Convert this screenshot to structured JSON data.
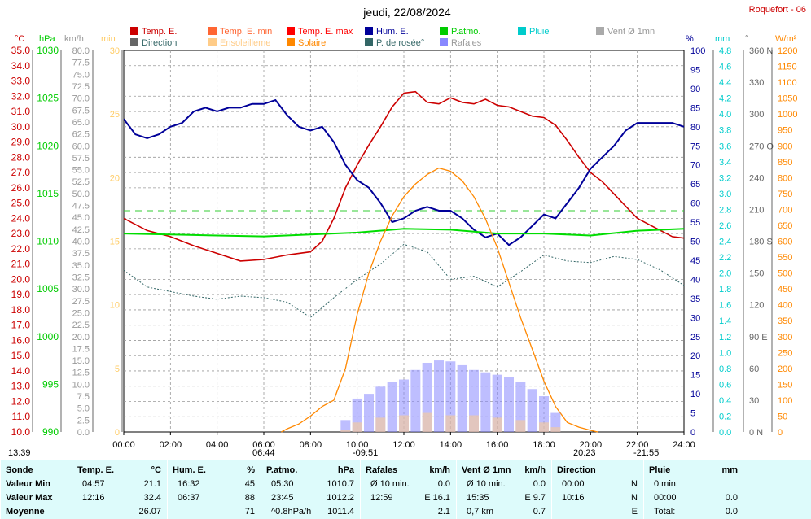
{
  "header": {
    "title": "jeudi, 22/08/2024",
    "station": "Roquefort - 06"
  },
  "legend": [
    {
      "label": "Temp. E.",
      "color": "#cc0000"
    },
    {
      "label": "Temp. E. min",
      "color": "#ff6633"
    },
    {
      "label": "Temp. E. max",
      "color": "#ff0000"
    },
    {
      "label": "Hum. E.",
      "color": "#000099"
    },
    {
      "label": "P.atmo.",
      "color": "#00cc00"
    },
    {
      "label": "Pluie",
      "color": "#00cccc"
    },
    {
      "label": "Vent Ø 1mn",
      "color": "#aaaaaa"
    },
    {
      "label": "Direction",
      "color": "#666666"
    },
    {
      "label": "Ensoleilleme",
      "color": "#ffcc88"
    },
    {
      "label": "Solaire",
      "color": "#ff8800"
    },
    {
      "label": "P. de rosée°",
      "color": "#336666"
    },
    {
      "label": "Rafales",
      "color": "#8888ff"
    }
  ],
  "axes": {
    "units": {
      "temp": "°C",
      "press": "hPa",
      "wind": "km/h",
      "solar_min": "min",
      "hum": "%",
      "rain": "mm",
      "dir": "°",
      "solar": "W/m²"
    },
    "temp_ticks": [
      "35.0",
      "34.0",
      "33.0",
      "32.0",
      "31.0",
      "30.0",
      "29.0",
      "28.0",
      "27.0",
      "26.0",
      "25.0",
      "24.0",
      "23.0",
      "22.0",
      "21.0",
      "20.0",
      "19.0",
      "18.0",
      "17.0",
      "16.0",
      "15.0",
      "14.0",
      "13.0",
      "12.0",
      "11.0",
      "10.0"
    ],
    "press_ticks": [
      "1030",
      "1025",
      "1020",
      "1015",
      "1010",
      "1005",
      "1000",
      "995",
      "990"
    ],
    "wind_ticks": [
      "80.0",
      "77.5",
      "75.0",
      "72.5",
      "70.0",
      "67.5",
      "65.0",
      "62.5",
      "60.0",
      "57.5",
      "55.0",
      "52.5",
      "50.0",
      "47.5",
      "45.0",
      "42.5",
      "40.0",
      "37.5",
      "35.0",
      "32.5",
      "30.0",
      "27.5",
      "25.0",
      "22.5",
      "20.0",
      "17.5",
      "15.0",
      "12.5",
      "10.0",
      "7.5",
      "5.0",
      "2.5",
      "0.0"
    ],
    "min_ticks": [
      "30",
      "25",
      "20",
      "15",
      "10",
      "5",
      "0"
    ],
    "hum_ticks": [
      "100",
      "95",
      "90",
      "85",
      "80",
      "75",
      "70",
      "65",
      "60",
      "55",
      "50",
      "45",
      "40",
      "35",
      "30",
      "25",
      "20",
      "15",
      "10",
      "5",
      "0"
    ],
    "rain_ticks": [
      "4.8",
      "4.6",
      "4.4",
      "4.2",
      "4.0",
      "3.8",
      "3.6",
      "3.4",
      "3.2",
      "3.0",
      "2.8",
      "2.6",
      "2.4",
      "2.2",
      "2.0",
      "1.8",
      "1.6",
      "1.4",
      "1.2",
      "1.0",
      "0.8",
      "0.6",
      "0.4",
      "0.2",
      "0.0"
    ],
    "dir_ticks": [
      "360 N",
      "330",
      "300",
      "270 O",
      "240",
      "210",
      "180 S",
      "150",
      "120",
      "90 E",
      "60",
      "30",
      "0 N"
    ],
    "solar_ticks": [
      "1200",
      "1150",
      "1100",
      "1050",
      "1000",
      "950",
      "900",
      "850",
      "800",
      "750",
      "700",
      "650",
      "600",
      "550",
      "500",
      "450",
      "400",
      "350",
      "300",
      "250",
      "200",
      "150",
      "100",
      "50",
      "0"
    ],
    "time_ticks": [
      "00:00",
      "02:00",
      "04:00",
      "06:00",
      "08:00",
      "10:00",
      "12:00",
      "14:00",
      "16:00",
      "18:00",
      "20:00",
      "22:00",
      "24:00"
    ]
  },
  "markers": {
    "m1": "13:39",
    "m2": "06:44",
    "m3": "-09:51",
    "m4": "20:23",
    "m5": "-21:55"
  },
  "chart_data": {
    "type": "line",
    "x_unit": "hours",
    "series": [
      {
        "name": "Temp. E.",
        "unit": "°C",
        "x": [
          0,
          1,
          2,
          3,
          4,
          5,
          6,
          7,
          8,
          8.5,
          9,
          9.5,
          10,
          10.5,
          11,
          11.5,
          12,
          12.5,
          13,
          13.5,
          14,
          14.5,
          15,
          15.5,
          16,
          16.5,
          17,
          17.5,
          18,
          18.5,
          19,
          19.5,
          20,
          20.5,
          21,
          21.5,
          22,
          22.5,
          23,
          23.5,
          24
        ],
        "y": [
          24.0,
          23.2,
          22.8,
          22.2,
          21.7,
          21.2,
          21.3,
          21.6,
          21.8,
          22.5,
          24.0,
          26.0,
          27.5,
          28.8,
          30.0,
          31.3,
          32.2,
          32.3,
          31.6,
          31.5,
          31.9,
          31.6,
          31.5,
          31.8,
          31.4,
          31.3,
          31.0,
          30.7,
          30.6,
          30.1,
          29.1,
          28.0,
          27.0,
          26.4,
          25.6,
          24.8,
          24.0,
          23.6,
          23.2,
          22.8,
          22.7
        ]
      },
      {
        "name": "Hum. E.",
        "unit": "%",
        "x": [
          0,
          0.5,
          1,
          1.5,
          2,
          2.5,
          3,
          3.5,
          4,
          4.5,
          5,
          5.5,
          6,
          6.5,
          7,
          7.5,
          8,
          8.5,
          9,
          9.5,
          10,
          10.5,
          11,
          11.5,
          12,
          12.5,
          13,
          13.5,
          14,
          14.5,
          15,
          15.5,
          16,
          16.5,
          17,
          17.5,
          18,
          18.5,
          19,
          19.5,
          20,
          20.5,
          21,
          21.5,
          22,
          22.5,
          23,
          23.5,
          24
        ],
        "y": [
          82,
          78,
          77,
          78,
          80,
          81,
          84,
          85,
          84,
          85,
          85,
          86,
          86,
          87,
          83,
          80,
          79,
          80,
          76,
          70,
          66,
          64,
          60,
          55,
          56,
          58,
          59,
          58,
          58,
          56,
          53,
          51,
          52,
          49,
          51,
          54,
          57,
          56,
          60,
          64,
          69,
          72,
          75,
          79,
          81,
          81,
          81,
          81,
          80
        ]
      },
      {
        "name": "P.atmo.",
        "unit": "hPa",
        "x": [
          0,
          2,
          4,
          6,
          8,
          10,
          12,
          14,
          16,
          18,
          20,
          22,
          24
        ],
        "y": [
          1010.8,
          1010.7,
          1010.6,
          1010.5,
          1010.7,
          1010.9,
          1011.3,
          1011.2,
          1010.8,
          1010.8,
          1010.6,
          1011.1,
          1011.3
        ]
      },
      {
        "name": "P. de rosée°",
        "unit": "°C",
        "x": [
          0,
          1,
          2,
          3,
          4,
          5,
          6,
          7,
          8,
          9,
          10,
          11,
          12,
          13,
          14,
          15,
          16,
          17,
          18,
          19,
          20,
          21,
          22,
          23,
          24
        ],
        "y": [
          20.6,
          19.5,
          19.2,
          18.9,
          18.7,
          18.9,
          18.8,
          18.5,
          17.5,
          18.8,
          20.0,
          21.0,
          22.3,
          21.8,
          20.0,
          20.2,
          19.5,
          20.5,
          21.6,
          21.2,
          21.1,
          21.5,
          21.3,
          20.6,
          19.6
        ]
      },
      {
        "name": "Solaire",
        "unit": "W/m²",
        "x": [
          6.75,
          7,
          7.5,
          8,
          8.5,
          9,
          9.5,
          10,
          10.5,
          11,
          11.5,
          12,
          12.5,
          13,
          13.5,
          14,
          14.5,
          15,
          15.5,
          16,
          16.5,
          17,
          17.5,
          18,
          18.5,
          19,
          19.5,
          20,
          20.3
        ],
        "y": [
          0,
          10,
          25,
          50,
          80,
          100,
          200,
          370,
          500,
          600,
          680,
          740,
          780,
          810,
          830,
          820,
          790,
          740,
          670,
          580,
          470,
          360,
          260,
          160,
          80,
          30,
          15,
          5,
          0
        ]
      },
      {
        "name": "Rafales",
        "unit": "km/h",
        "x": [
          9.5,
          10,
          10.5,
          11,
          11.5,
          12,
          12.5,
          13,
          13.5,
          14,
          14.5,
          15,
          15.5,
          16,
          16.5,
          17,
          17.5,
          18,
          18.5
        ],
        "y": [
          2.5,
          7.0,
          8.0,
          9.5,
          10.5,
          11.0,
          13.0,
          14.5,
          15.0,
          14.8,
          14.0,
          13.0,
          12.5,
          12.0,
          11.5,
          10.5,
          9.0,
          7.5,
          4.0
        ]
      },
      {
        "name": "Vent Ø 1mn",
        "unit": "km/h",
        "x": [
          9.5,
          10,
          11,
          12,
          13,
          14,
          15,
          16,
          17,
          18,
          18.5
        ],
        "y": [
          0.5,
          2.0,
          3.0,
          3.5,
          4.0,
          3.5,
          3.5,
          3.0,
          2.5,
          2.0,
          1.0
        ]
      }
    ],
    "axes_ranges": {
      "temp": [
        10,
        35
      ],
      "press": [
        990,
        1030
      ],
      "wind": [
        0,
        80
      ],
      "hum": [
        0,
        100
      ],
      "rain": [
        0,
        5
      ],
      "solar": [
        0,
        1200
      ],
      "x": [
        0,
        24
      ]
    },
    "grid": true
  },
  "table": {
    "columns": [
      {
        "title": "Sonde",
        "unit": "",
        "min_label": "Valeur Min",
        "max_label": "Valeur Max",
        "avg_label": "Moyenne"
      },
      {
        "title": "Temp. E.",
        "unit": "°C",
        "min_time": "04:57",
        "min_val": "21.1",
        "max_time": "12:16",
        "max_val": "32.4",
        "avg_time": "",
        "avg_val": "26.07"
      },
      {
        "title": "Hum. E.",
        "unit": "%",
        "min_time": "16:32",
        "min_val": "45",
        "max_time": "06:37",
        "max_val": "88",
        "avg_time": "",
        "avg_val": "71"
      },
      {
        "title": "P.atmo.",
        "unit": "hPa",
        "min_time": "05:30",
        "min_val": "1010.7",
        "max_time": "23:45",
        "max_val": "1012.2",
        "avg_time": "^0.8hPa/h",
        "avg_val": "1011.4"
      },
      {
        "title": "Rafales",
        "unit": "km/h",
        "min_time": "Ø 10 min.",
        "min_val": "0.0",
        "max_time": "12:59",
        "max_val": "E 16.1",
        "avg_time": "",
        "avg_val": "2.1"
      },
      {
        "title": "Vent Ø 1mn",
        "unit": "km/h",
        "min_time": "Ø 10 min.",
        "min_val": "0.0",
        "max_time": "15:35",
        "max_val": "E 9.7",
        "avg_time": "0,7 km",
        "avg_val": "0.7"
      },
      {
        "title": "Direction",
        "unit": "",
        "min_time": "00:00",
        "min_val": "N",
        "max_time": "10:16",
        "max_val": "N",
        "avg_time": "",
        "avg_val": "E"
      },
      {
        "title": "Pluie",
        "unit": "mm",
        "min_time": "0 min.",
        "min_val": "",
        "max_time": "00:00",
        "max_val": "0.0",
        "avg_time": "Total:",
        "avg_val": "0.0"
      }
    ]
  }
}
